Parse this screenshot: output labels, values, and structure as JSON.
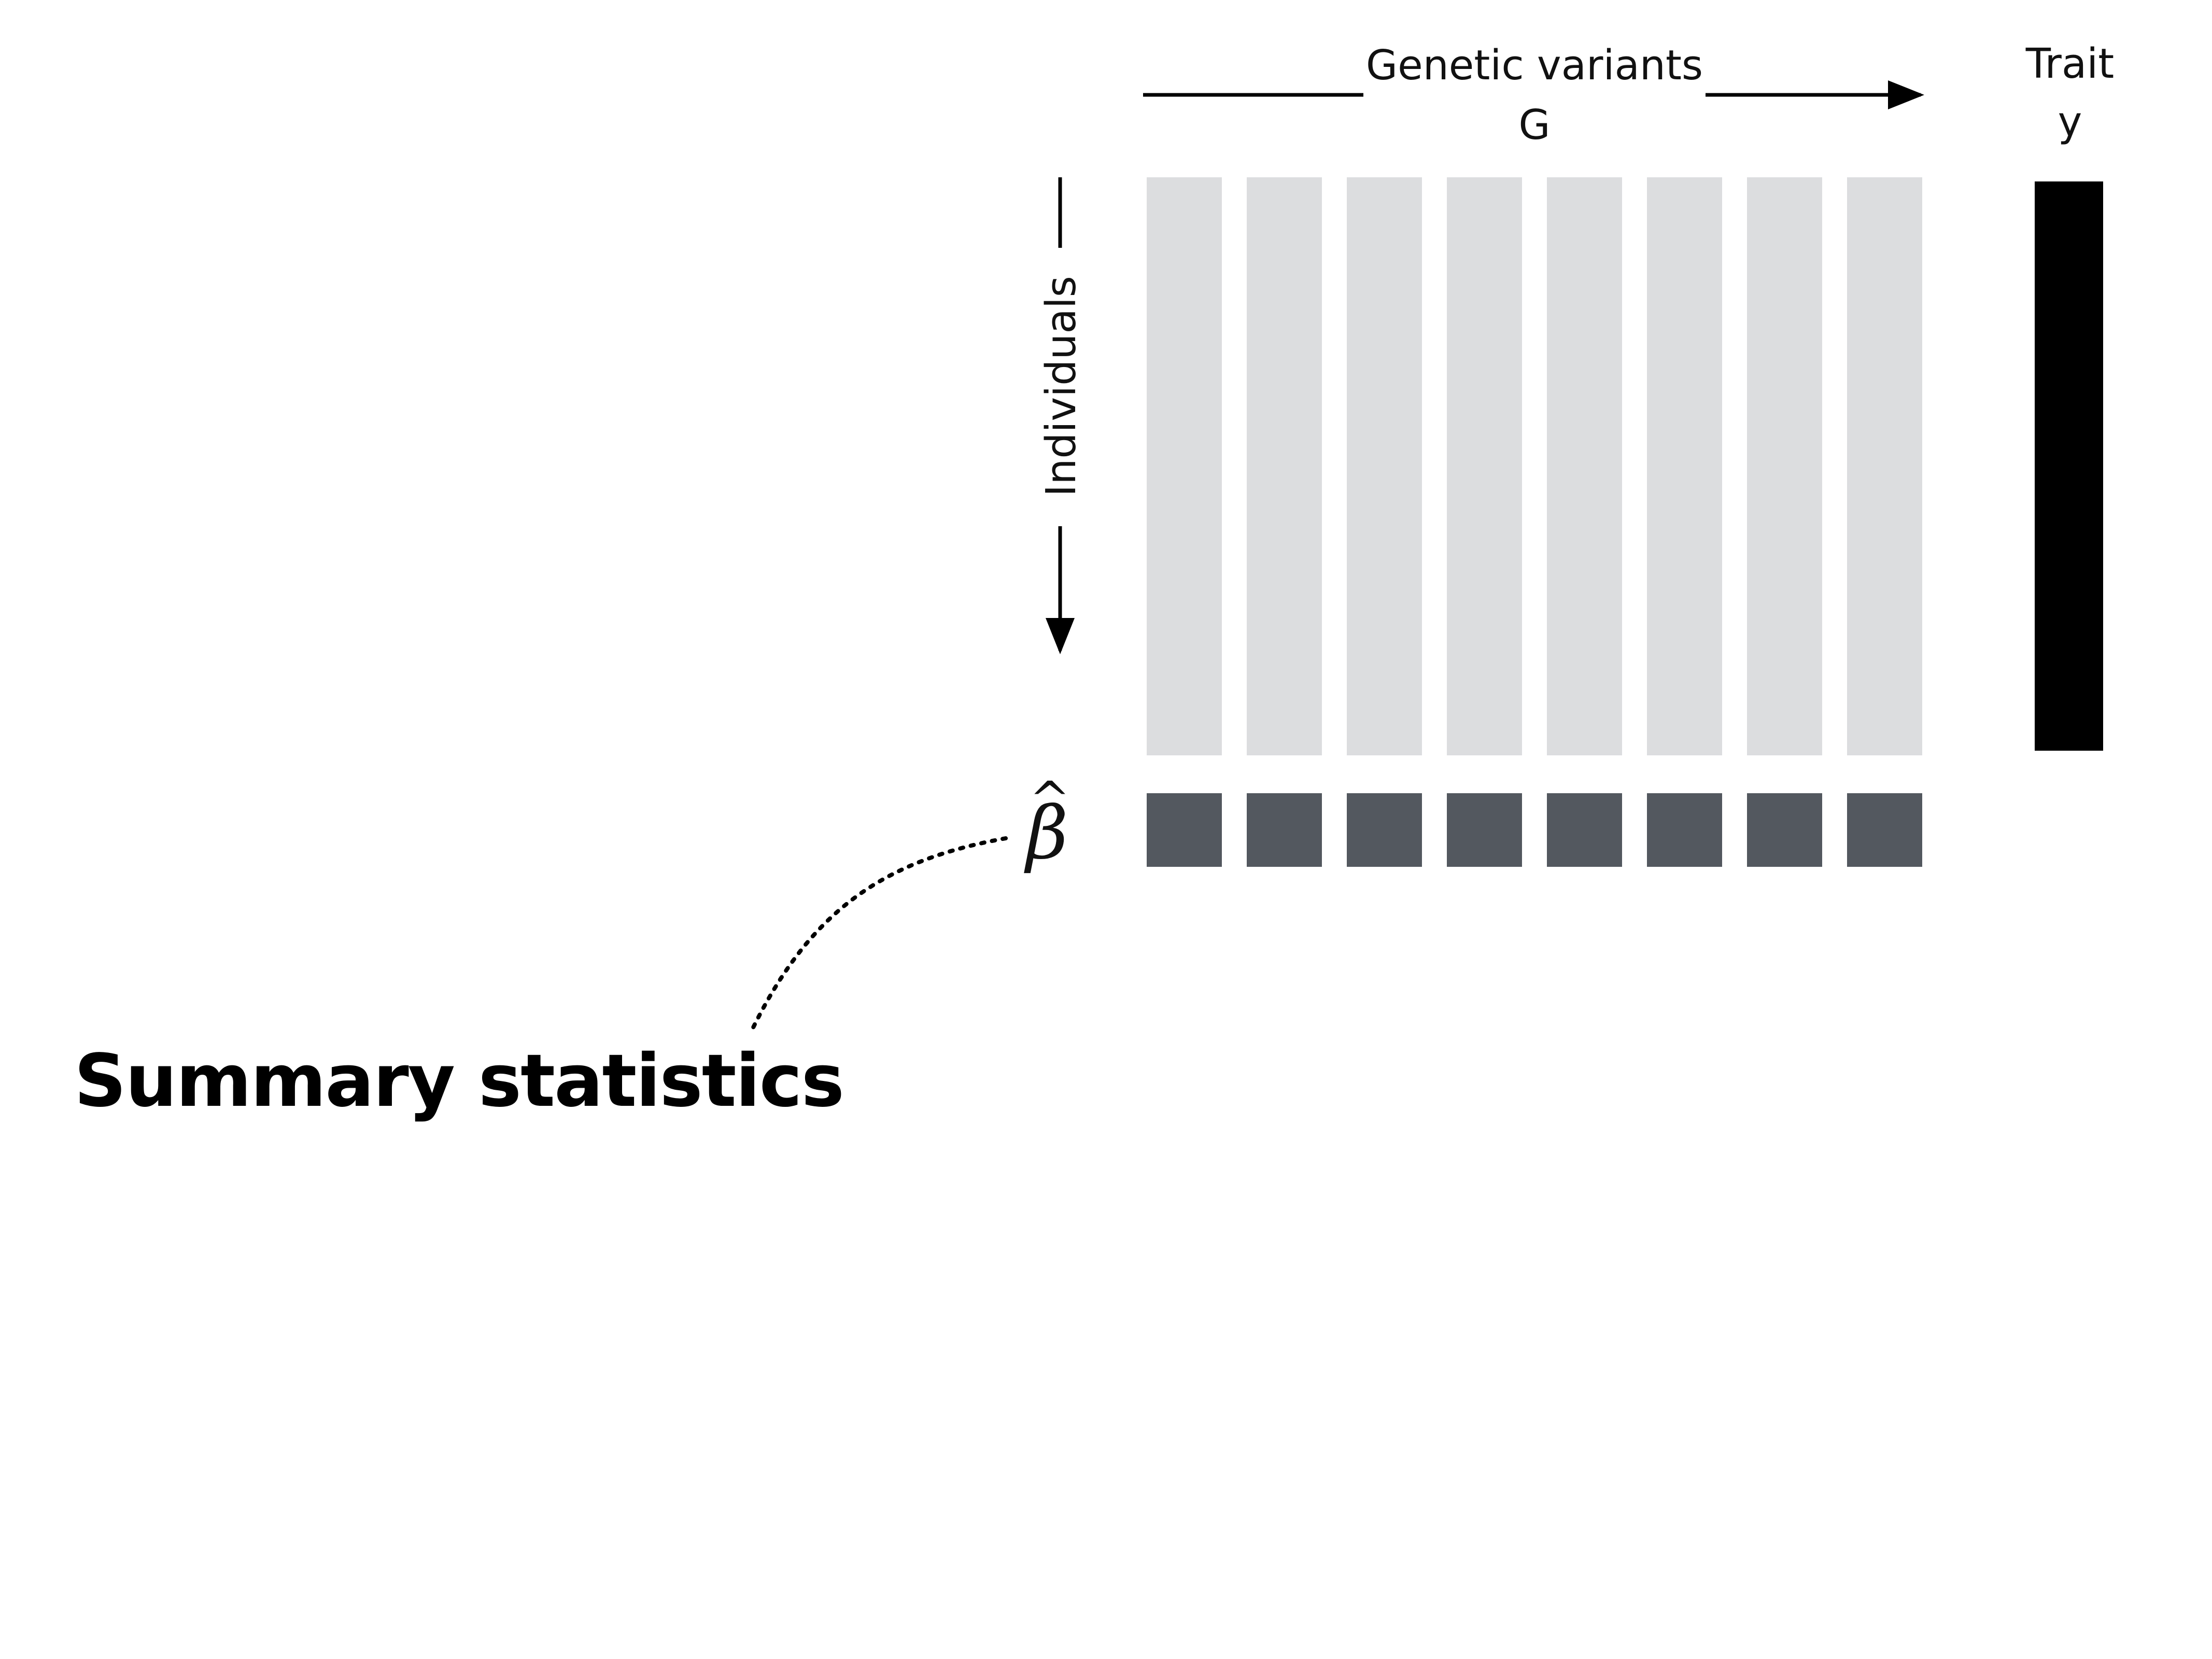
{
  "header": {
    "genotype_label_line1": "Genetic variants",
    "genotype_label_line2": "G",
    "trait_label_line1": "Trait",
    "trait_label_line2": "y"
  },
  "rows_label": "Individuals",
  "beta_symbol": "β",
  "beta_hat_symbol": "^",
  "summary_label": "Summary statistics",
  "variant_count": 8,
  "colors": {
    "genotype_column": "#dcdddf",
    "beta_square": "#53585f",
    "trait_column": "#000000",
    "lines": "#000000"
  }
}
